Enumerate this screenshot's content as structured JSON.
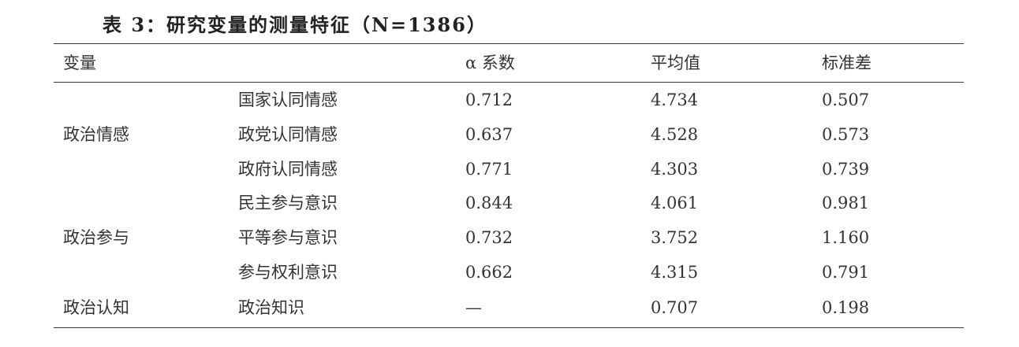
{
  "title": "表 3：研究变量的测量特征（N=1386）",
  "table": {
    "header": {
      "variable": "变量",
      "alpha": "α 系数",
      "mean": "平均值",
      "sd": "标准差"
    },
    "groups": [
      {
        "name": "政治情感",
        "rows": [
          {
            "item": "国家认同情感",
            "alpha": "0.712",
            "mean": "4.734",
            "sd": "0.507"
          },
          {
            "item": "政党认同情感",
            "alpha": "0.637",
            "mean": "4.528",
            "sd": "0.573"
          },
          {
            "item": "政府认同情感",
            "alpha": "0.771",
            "mean": "4.303",
            "sd": "0.739"
          }
        ]
      },
      {
        "name": "政治参与",
        "rows": [
          {
            "item": "民主参与意识",
            "alpha": "0.844",
            "mean": "4.061",
            "sd": "0.981"
          },
          {
            "item": "平等参与意识",
            "alpha": "0.732",
            "mean": "3.752",
            "sd": "1.160"
          },
          {
            "item": "参与权利意识",
            "alpha": "0.662",
            "mean": "4.315",
            "sd": "0.791"
          }
        ]
      },
      {
        "name": "政治认知",
        "rows": [
          {
            "item": "政治知识",
            "alpha": "—",
            "mean": "0.707",
            "sd": "0.198"
          }
        ]
      }
    ]
  }
}
